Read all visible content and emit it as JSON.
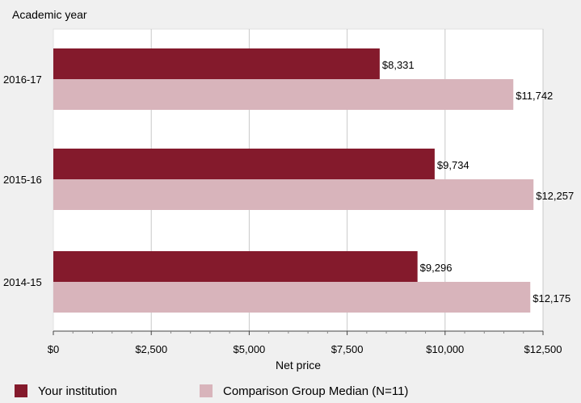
{
  "chart_data": {
    "type": "bar",
    "orientation": "horizontal",
    "title": "Academic year",
    "xlabel": "Net price",
    "ylabel": "Academic year",
    "categories": [
      "2016-17",
      "2015-16",
      "2014-15"
    ],
    "series": [
      {
        "name": "Your institution",
        "color": "#841a2c",
        "values": [
          8331,
          9734,
          9296
        ],
        "labels": [
          "$8,331",
          "$9,734",
          "$9,296"
        ]
      },
      {
        "name": "Comparison Group Median (N=11)",
        "color": "#d8b4bb",
        "values": [
          11742,
          12257,
          12175
        ],
        "labels": [
          "$11,742",
          "$12,257",
          "$12,175"
        ]
      }
    ],
    "xlim": [
      0,
      12500
    ],
    "xticks": [
      0,
      2500,
      5000,
      7500,
      10000,
      12500
    ],
    "xtick_labels": [
      "$0",
      "$2,500",
      "$5,000",
      "$7,500",
      "$10,000",
      "$12,500"
    ],
    "grid": true,
    "legend_position": "bottom"
  }
}
